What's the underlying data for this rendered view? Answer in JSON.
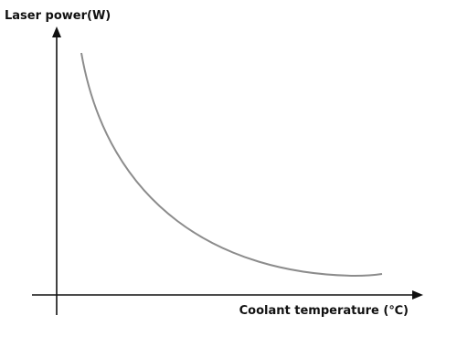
{
  "axes": {
    "y_label": "Laser power(W)",
    "x_label": "Coolant temperature (℃)"
  }
}
